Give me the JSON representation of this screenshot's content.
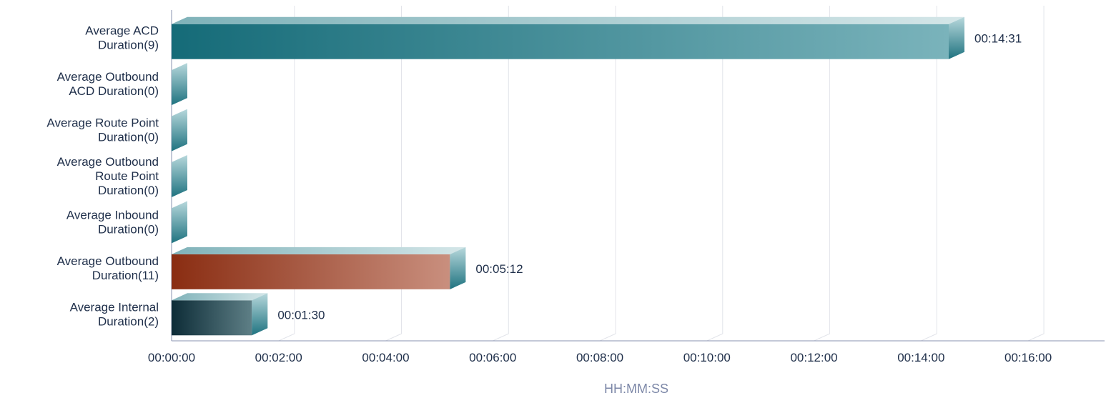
{
  "chart_data": {
    "type": "bar",
    "orientation": "horizontal",
    "style": "3d",
    "categories": [
      "Average ACD Duration(9)",
      "Average Outbound ACD Duration(0)",
      "Average Route Point Duration(0)",
      "Average Outbound Route Point Duration(0)",
      "Average Inbound Duration(0)",
      "Average Outbound Duration(11)",
      "Average Internal Duration(2)"
    ],
    "category_lines": [
      [
        "Average ACD",
        "Duration(9)"
      ],
      [
        "Average Outbound",
        "ACD Duration(0)"
      ],
      [
        "Average Route Point",
        "Duration(0)"
      ],
      [
        "Average Outbound",
        "Route Point",
        "Duration(0)"
      ],
      [
        "Average Inbound",
        "Duration(0)"
      ],
      [
        "Average Outbound",
        "Duration(11)"
      ],
      [
        "Average Internal",
        "Duration(2)"
      ]
    ],
    "values_seconds": [
      871,
      0,
      0,
      0,
      0,
      312,
      90
    ],
    "value_labels": [
      "00:14:31",
      "",
      "",
      "",
      "",
      "00:05:12",
      "00:01:30"
    ],
    "bar_colors": [
      [
        "#156b78",
        "#7ab3bb"
      ],
      [
        "#156b78",
        "#7ab3bb"
      ],
      [
        "#156b78",
        "#7ab3bb"
      ],
      [
        "#156b78",
        "#7ab3bb"
      ],
      [
        "#156b78",
        "#7ab3bb"
      ],
      [
        "#8a2d12",
        "#c98f7e"
      ],
      [
        "#0d2c37",
        "#5e7f86"
      ]
    ],
    "xticks": [
      "00:00:00",
      "00:02:00",
      "00:04:00",
      "00:06:00",
      "00:08:00",
      "00:10:00",
      "00:12:00",
      "00:14:00",
      "00:16:00"
    ],
    "xlim_seconds": [
      0,
      1053
    ],
    "xlabel": "HH:MM:SS",
    "grid": true
  }
}
